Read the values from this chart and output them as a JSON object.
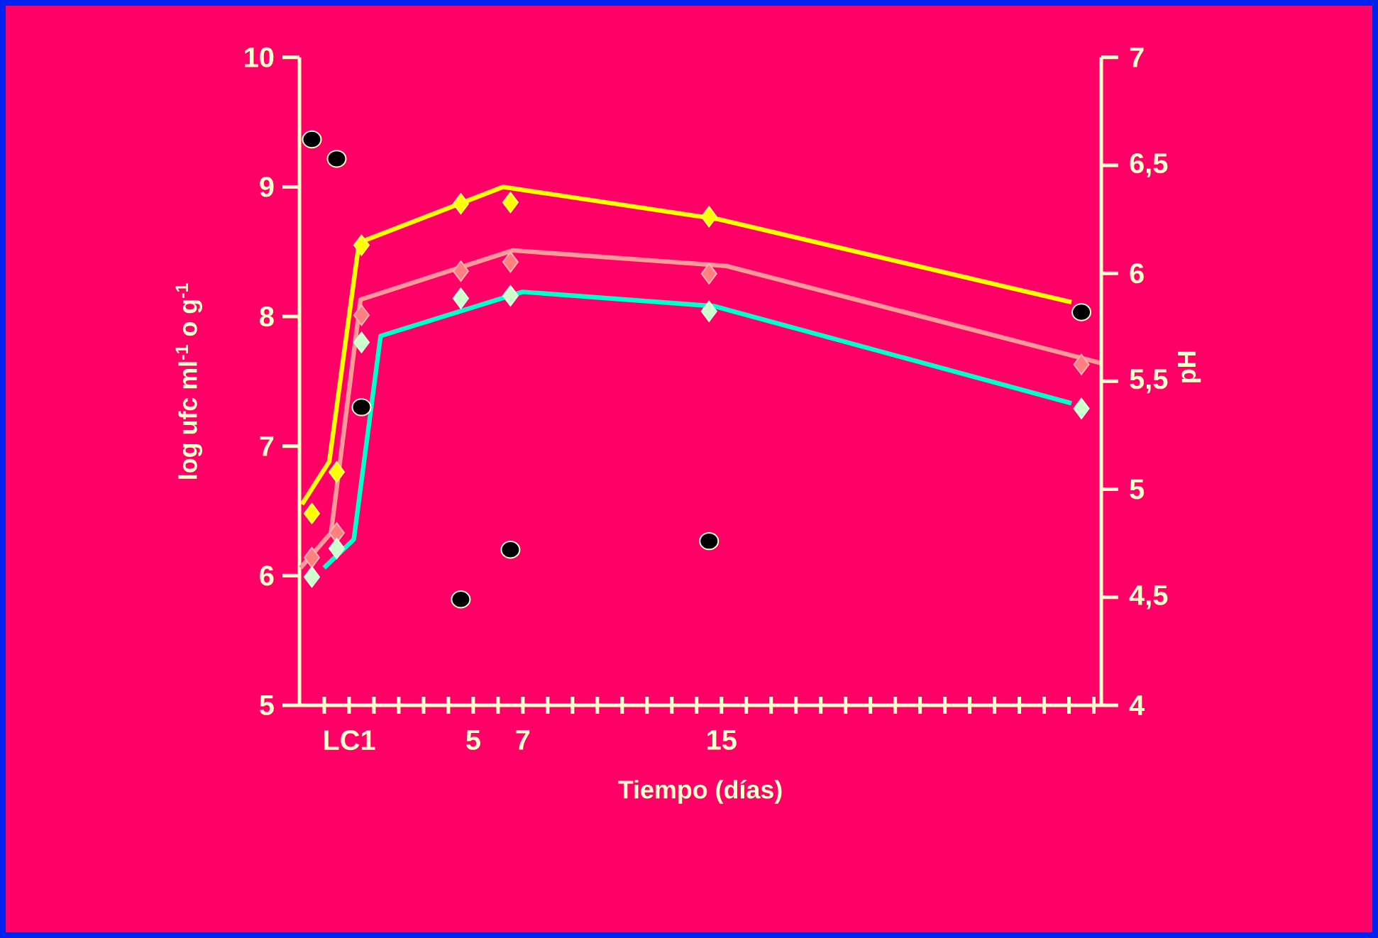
{
  "chart_data": {
    "type": "line",
    "xlabel": "Tiempo (días)",
    "ylabel": "log ufc ml$^{-1}$ o g$^{-1}$",
    "y2label": "pH",
    "xlim": [
      -1.5,
      30.8
    ],
    "ylim": [
      5,
      10
    ],
    "y2lim": [
      4,
      7
    ],
    "xticks": [
      {
        "value": -0.5,
        "label": null
      },
      {
        "value": 0.5,
        "label": "LC1"
      },
      {
        "value": 1.5,
        "label": null
      },
      {
        "value": 2.5,
        "label": null
      },
      {
        "value": 3.5,
        "label": null
      },
      {
        "value": 4.5,
        "label": null
      },
      {
        "value": 5.5,
        "label": "5"
      },
      {
        "value": 6.5,
        "label": null
      },
      {
        "value": 7.5,
        "label": "7"
      },
      {
        "value": 8.5,
        "label": null
      },
      {
        "value": 9.5,
        "label": null
      },
      {
        "value": 10.5,
        "label": null
      },
      {
        "value": 11.5,
        "label": null
      },
      {
        "value": 12.5,
        "label": null
      },
      {
        "value": 13.5,
        "label": null
      },
      {
        "value": 14.5,
        "label": null
      },
      {
        "value": 15.5,
        "label": "15"
      },
      {
        "value": 16.5,
        "label": null
      },
      {
        "value": 17.5,
        "label": null
      },
      {
        "value": 18.5,
        "label": null
      },
      {
        "value": 19.5,
        "label": null
      },
      {
        "value": 20.5,
        "label": null
      },
      {
        "value": 21.5,
        "label": null
      },
      {
        "value": 22.5,
        "label": null
      },
      {
        "value": 23.5,
        "label": null
      },
      {
        "value": 24.5,
        "label": null
      },
      {
        "value": 25.5,
        "label": null
      },
      {
        "value": 26.5,
        "label": null
      },
      {
        "value": 27.5,
        "label": null
      },
      {
        "value": 28.5,
        "label": null
      },
      {
        "value": 29.5,
        "label": null
      },
      {
        "value": 30.5,
        "label": null
      }
    ],
    "yticks": [
      5,
      6,
      7,
      8,
      9,
      10
    ],
    "y2ticks": [
      4,
      {
        "value": 4.5,
        "label": "4,5"
      },
      5,
      {
        "value": 5.5,
        "label": "5,5"
      },
      6,
      {
        "value": 6.5,
        "label": "6,5"
      },
      7
    ],
    "series": [
      {
        "type": "line",
        "color": "#ffff00",
        "x": [
          -1.4,
          -0.3,
          0.9,
          6.7,
          15.4,
          29.6
        ],
        "values": [
          6.55,
          6.88,
          8.57,
          9.0,
          8.75,
          8.11
        ]
      },
      {
        "type": "line",
        "color": "#ff9999",
        "x": [
          -1.46,
          -0.23,
          0.96,
          7.1,
          15.7,
          30.8
        ],
        "values": [
          6.06,
          6.33,
          8.13,
          8.51,
          8.39,
          7.64
        ]
      },
      {
        "type": "line",
        "color": "#00ffcc",
        "x": [
          -0.51,
          0.69,
          1.77,
          7.49,
          15.2,
          29.6
        ],
        "values": [
          6.06,
          6.28,
          7.85,
          8.19,
          8.08,
          7.33
        ]
      },
      {
        "type": "scatter",
        "marker": "diamond",
        "color": "#ffff00",
        "x": [
          -1,
          0,
          1,
          5,
          7,
          15
        ],
        "values": [
          6.48,
          6.8,
          8.55,
          8.87,
          8.88,
          8.77
        ]
      },
      {
        "type": "scatter",
        "marker": "diamond",
        "color": "#ff8080",
        "x": [
          -1,
          0,
          1,
          5,
          7,
          15,
          30
        ],
        "values": [
          6.14,
          6.33,
          8.01,
          8.35,
          8.42,
          8.33,
          7.63
        ]
      },
      {
        "type": "scatter",
        "marker": "diamond",
        "color": "#ccffcc",
        "x": [
          -1,
          0,
          1,
          5,
          7,
          15,
          30
        ],
        "values": [
          5.99,
          6.21,
          7.8,
          8.14,
          8.16,
          8.04,
          7.29
        ]
      },
      {
        "type": "scatter",
        "marker": "circle",
        "axis": "y2",
        "color": "#000000",
        "x": [
          -1,
          0,
          1,
          5,
          7,
          15,
          30
        ],
        "values": [
          6.62,
          6.53,
          5.38,
          4.49,
          4.72,
          4.76,
          5.82
        ]
      }
    ]
  }
}
